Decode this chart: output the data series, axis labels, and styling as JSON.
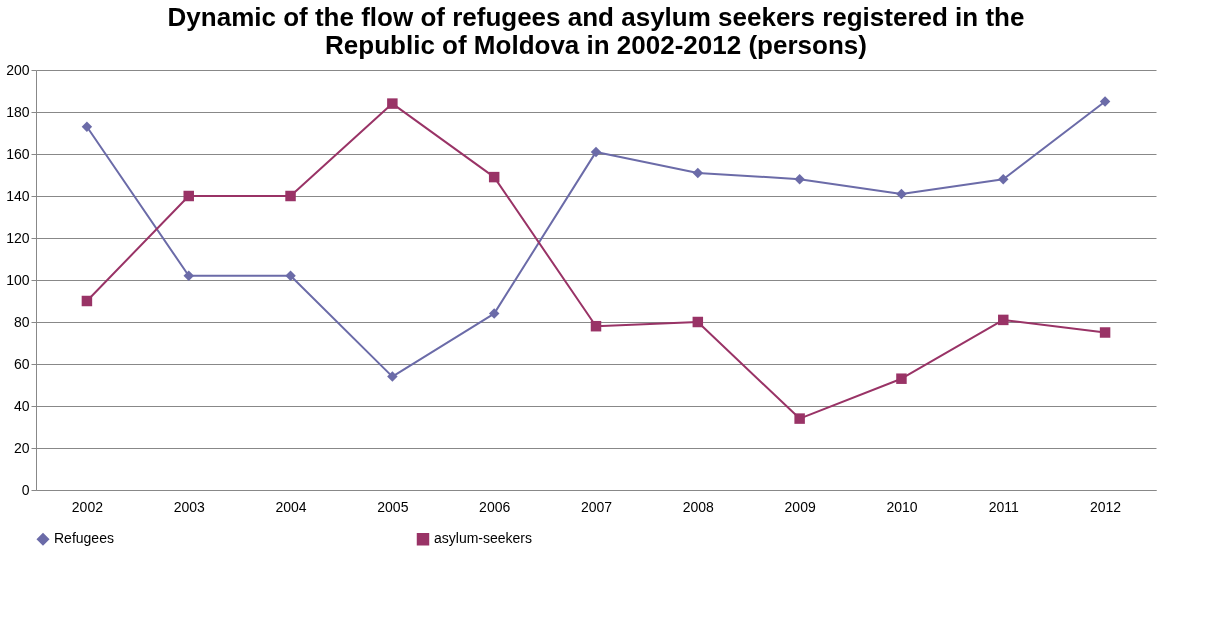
{
  "chart_data": {
    "type": "line",
    "title": "Dynamic of the flow of refugees and asylum seekers registered in the Republic of Moldova in 2002-2012 (persons)",
    "categories": [
      "2002",
      "2003",
      "2004",
      "2005",
      "2006",
      "2007",
      "2008",
      "2009",
      "2010",
      "2011",
      "2012"
    ],
    "series": [
      {
        "name": "Refugees",
        "color": "#6b6ba8",
        "marker": "diamond",
        "values": [
          173,
          102,
          102,
          54,
          84,
          161,
          151,
          148,
          141,
          148,
          185
        ]
      },
      {
        "name": "asylum-seekers",
        "color": "#993366",
        "marker": "square",
        "values": [
          90,
          140,
          140,
          184,
          149,
          78,
          80,
          34,
          53,
          81,
          75
        ]
      }
    ],
    "ylim": [
      0,
      200
    ],
    "yticks": [
      0,
      20,
      40,
      60,
      80,
      100,
      120,
      140,
      160,
      180,
      200
    ],
    "grid": "y",
    "legend": "bottom"
  }
}
